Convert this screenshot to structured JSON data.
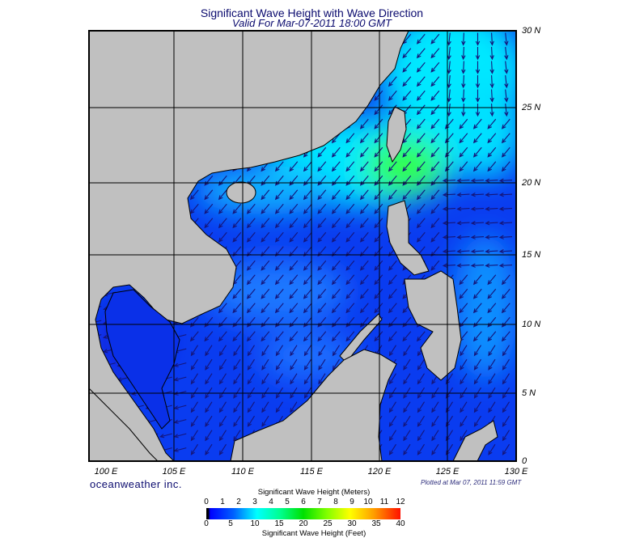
{
  "title": "Significant Wave Height with Wave Direction",
  "subtitle": "Valid For Mar-07-2011 18:00 GMT",
  "map": {
    "lon_labels": [
      "100 E",
      "105 E",
      "110 E",
      "115 E",
      "120 E",
      "125 E",
      "130 E"
    ],
    "lat_labels": [
      "30 N",
      "25 N",
      "20 N",
      "15 N",
      "10 N",
      "5 N",
      "0"
    ],
    "ocean_colors": {
      "low": "#0a3cf0",
      "mid": "#00e8ff",
      "high": "#30ff40"
    },
    "land_color": "#c0c0c0",
    "arrow_color": "#15157a"
  },
  "brand": "oceanweather inc.",
  "plotted": "Plotted at Mar 07, 2011 11:59 GMT",
  "colorbar": {
    "meters_title": "Significant Wave Height (Meters)",
    "feet_title": "Significant Wave Height (Feet)",
    "meters_ticks": [
      "0",
      "1",
      "2",
      "3",
      "4",
      "5",
      "6",
      "7",
      "8",
      "9",
      "10",
      "11",
      "12"
    ],
    "feet_ticks": [
      "0",
      "5",
      "10",
      "15",
      "20",
      "25",
      "30",
      "35",
      "40"
    ]
  }
}
